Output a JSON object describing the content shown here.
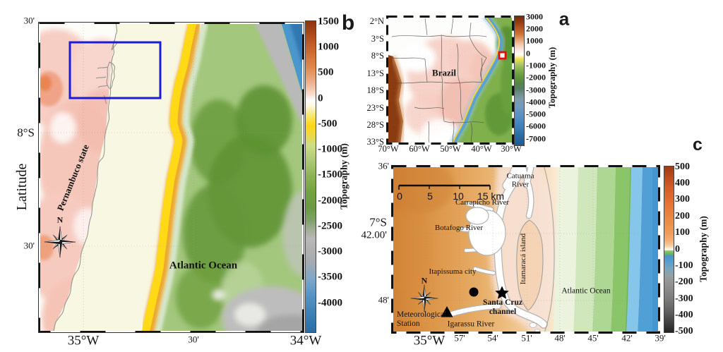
{
  "panel_b": {
    "letter": "b",
    "y_axis_label": "Latitude",
    "y_ticks": [
      "30'",
      "8°S",
      "30'"
    ],
    "x_ticks": [
      "35°W",
      "30'",
      "34°W"
    ],
    "region_label": "Pernambuco state",
    "ocean_label": "Atlantic Ocean",
    "compass_label": "N",
    "colorbar": {
      "label": "Topography (m)",
      "ticks": [
        "1500",
        "1000",
        "500",
        "0",
        "-500",
        "-1000",
        "-1500",
        "-2000",
        "-2500",
        "-3000",
        "-3500",
        "-4000"
      ]
    }
  },
  "panel_a": {
    "letter": "a",
    "country_label": "Brazil",
    "y_ticks": [
      "2°N",
      "3°S",
      "8°S",
      "13°S",
      "18°S",
      "23°S",
      "28°S",
      "33°S"
    ],
    "x_ticks": [
      "70°W",
      "60°W",
      "50°W",
      "40°W",
      "30°W"
    ],
    "colorbar": {
      "label": "Topography (m)",
      "ticks": [
        "3000",
        "2000",
        "1000",
        "0",
        "-1000",
        "-2000",
        "-3000",
        "-4000",
        "-5000",
        "-6000",
        "-7000"
      ]
    }
  },
  "panel_c": {
    "letter": "c",
    "y_ticks": [
      "36'",
      "7°S",
      "42.00'",
      "48'"
    ],
    "x_ticks": [
      "35°W",
      "57'",
      "54'",
      "51'",
      "48'",
      "45'",
      "42'",
      "39'"
    ],
    "scale_bar": {
      "labels": [
        "0",
        "5",
        "10",
        "15 km"
      ]
    },
    "compass_label": "N",
    "labels": {
      "catuama": "Catuama\nRiver",
      "carrapicho": "Carrapicho River",
      "botafogo": "Botafogo River",
      "itapissuma": "Itapissuma city",
      "itamaraca": "Itamaracá island",
      "atlantic": "Atlantic Ocean",
      "santa_cruz": "Santa Cruz\nchannel",
      "met_station": "Meteorological\nStation",
      "igarassu": "Igarassu River"
    },
    "colorbar": {
      "label": "Topography (m)",
      "ticks": [
        "500",
        "400",
        "300",
        "200",
        "100",
        "0",
        "-100",
        "-200",
        "-300",
        "-400",
        "-500"
      ]
    }
  },
  "colors": {
    "study_box": "#1b1bdb",
    "marker_red": "#e60c0c",
    "land_high": "#8c3410",
    "slope_yellow": "#ffd814",
    "deep_green": "#5f9333",
    "abyss_blue": "#2a6da5"
  }
}
